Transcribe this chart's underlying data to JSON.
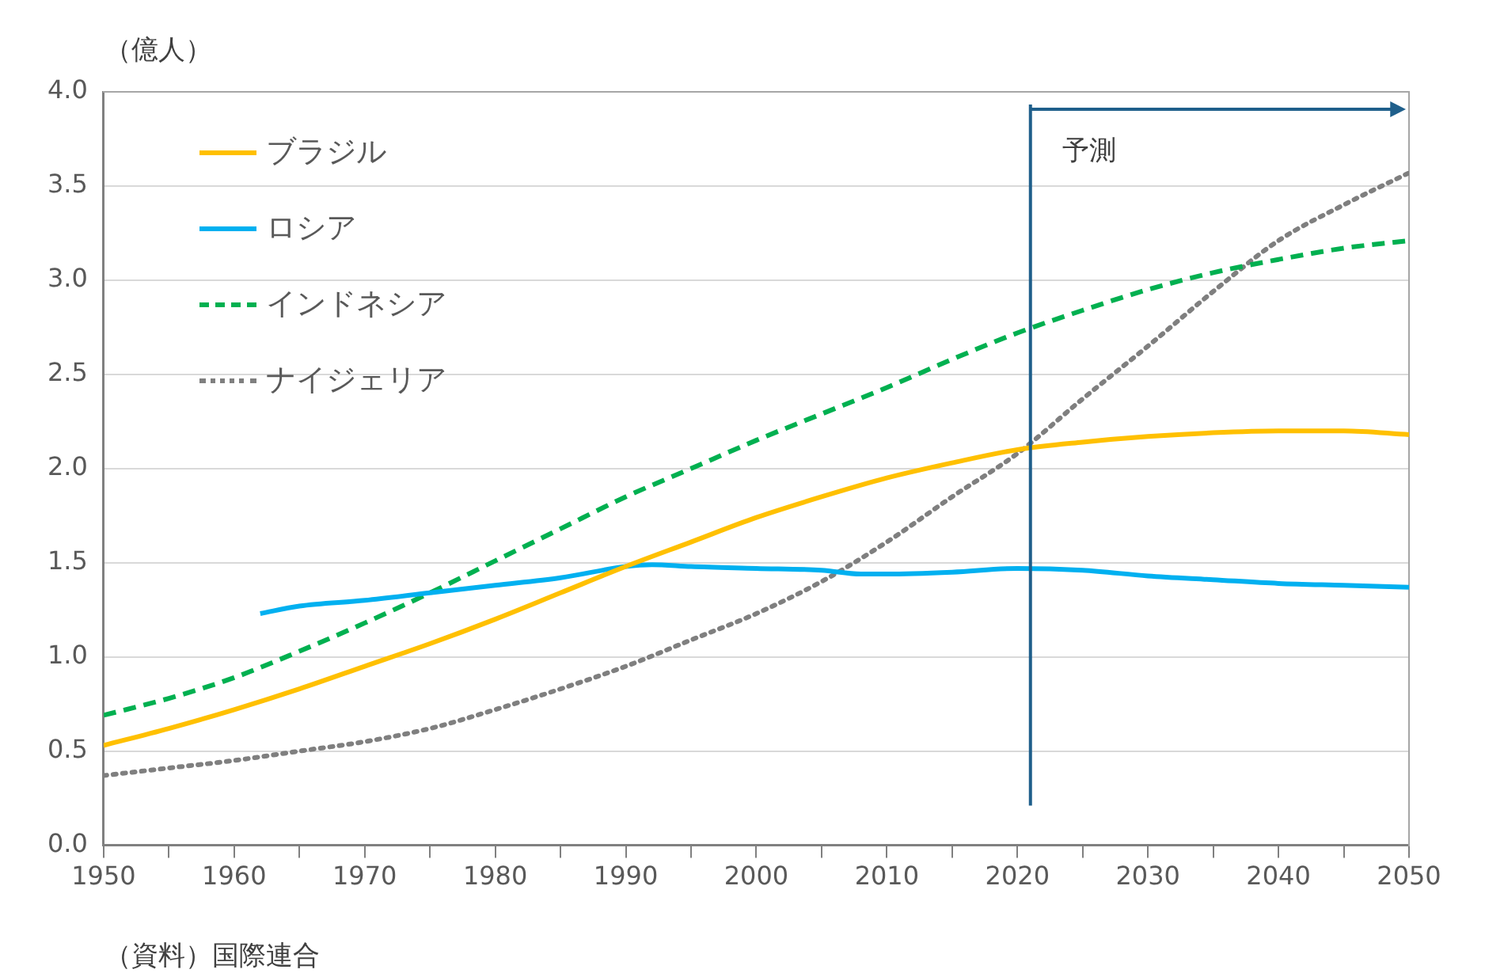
{
  "chart_data": {
    "type": "line",
    "ylabel": "（億人）",
    "annotations": [
      "（資料）国際連合"
    ],
    "xlim": [
      1950,
      2050
    ],
    "xticks": [
      1950,
      {
        "value": 1955,
        "label": null
      },
      1960,
      {
        "value": 1965,
        "label": null
      },
      1970,
      {
        "value": 1975,
        "label": null
      },
      1980,
      {
        "value": 1985,
        "label": null
      },
      1990,
      {
        "value": 1995,
        "label": null
      },
      2000,
      {
        "value": 2005,
        "label": null
      },
      2010,
      {
        "value": 2015,
        "label": null
      },
      2020,
      {
        "value": 2025,
        "label": null
      },
      2030,
      {
        "value": 2035,
        "label": null
      },
      2040,
      {
        "value": 2045,
        "label": null
      },
      2050
    ],
    "ylim": [
      0,
      4
    ],
    "yticks": [
      {
        "value": 0,
        "label": "0.0"
      },
      0.5,
      {
        "value": 1,
        "label": "1.0"
      },
      1.5,
      {
        "value": 2,
        "label": "2.0"
      },
      2.5,
      {
        "value": 3,
        "label": "3.0"
      },
      3.5,
      {
        "value": 4,
        "label": "4.0"
      }
    ],
    "grid": "y",
    "legend": "top left",
    "marker": "none",
    "ref_lines": [
      {
        "axis": "x",
        "value": 2021,
        "label": "予測",
        "color": "#1f5f8b"
      }
    ],
    "series": [
      {
        "name": "ブラジル",
        "color": "#ffc000",
        "line_style": "solid",
        "x": [
          1950,
          1955,
          1960,
          1965,
          1970,
          1975,
          1980,
          1985,
          1990,
          1995,
          2000,
          2005,
          2010,
          2015,
          2020,
          2025,
          2030,
          2035,
          2040,
          2045,
          2050
        ],
        "values": [
          0.53,
          0.62,
          0.72,
          0.83,
          0.95,
          1.07,
          1.2,
          1.34,
          1.48,
          1.61,
          1.74,
          1.85,
          1.95,
          2.03,
          2.1,
          2.14,
          2.17,
          2.19,
          2.2,
          2.2,
          2.18
        ]
      },
      {
        "name": "ロシア",
        "color": "#00b0f0",
        "line_style": "solid",
        "x": [
          1962,
          1965,
          1970,
          1975,
          1980,
          1985,
          1990,
          1992,
          1995,
          2000,
          2005,
          2008,
          2010,
          2015,
          2020,
          2025,
          2030,
          2035,
          2040,
          2045,
          2050
        ],
        "values": [
          1.23,
          1.27,
          1.3,
          1.34,
          1.38,
          1.42,
          1.48,
          1.49,
          1.48,
          1.47,
          1.46,
          1.44,
          1.44,
          1.45,
          1.47,
          1.46,
          1.43,
          1.41,
          1.39,
          1.38,
          1.37
        ]
      },
      {
        "name": "インドネシア",
        "color": "#00b050",
        "line_style": "dashed",
        "x": [
          1950,
          1955,
          1960,
          1965,
          1970,
          1975,
          1980,
          1985,
          1990,
          1995,
          2000,
          2005,
          2010,
          2015,
          2020,
          2025,
          2030,
          2035,
          2040,
          2045,
          2050
        ],
        "values": [
          0.69,
          0.78,
          0.89,
          1.03,
          1.18,
          1.34,
          1.51,
          1.68,
          1.85,
          2.0,
          2.15,
          2.29,
          2.43,
          2.58,
          2.72,
          2.84,
          2.95,
          3.04,
          3.11,
          3.17,
          3.21
        ]
      },
      {
        "name": "ナイジェリア",
        "color": "#7f7f7f",
        "line_style": "dotted",
        "x": [
          1950,
          1955,
          1960,
          1965,
          1970,
          1975,
          1980,
          1985,
          1990,
          1995,
          2000,
          2005,
          2010,
          2015,
          2020,
          2025,
          2030,
          2035,
          2040,
          2045,
          2050
        ],
        "values": [
          0.37,
          0.41,
          0.45,
          0.5,
          0.55,
          0.62,
          0.72,
          0.83,
          0.95,
          1.09,
          1.23,
          1.4,
          1.61,
          1.85,
          2.08,
          2.37,
          2.65,
          2.94,
          3.21,
          3.4,
          3.57
        ]
      }
    ]
  }
}
